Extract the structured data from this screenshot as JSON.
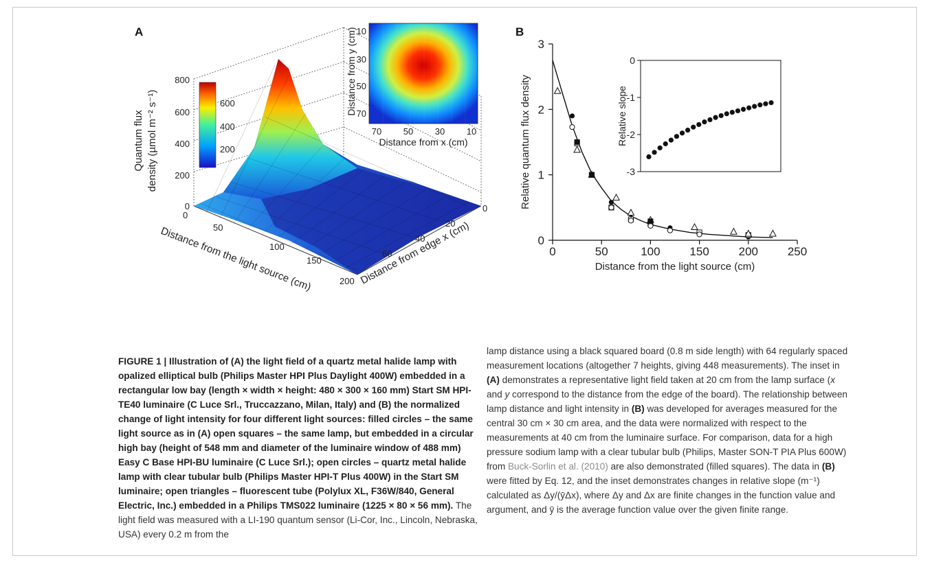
{
  "panel_a": {
    "label": "A",
    "z_axis_label_line1": "Quantum flux",
    "z_axis_label_line2": "density (µmol m⁻² s⁻¹)",
    "z_ticks": [
      "0",
      "200",
      "400",
      "600",
      "800"
    ],
    "x_axis_label": "Distance from the light source (cm)",
    "x_ticks": [
      "0",
      "50",
      "100",
      "150",
      "200"
    ],
    "y_axis_label": "Distance from edge x (cm)",
    "y_ticks": [
      "0",
      "20",
      "40",
      "60"
    ],
    "colorbar_ticks": [
      "600",
      "400",
      "200"
    ],
    "inset": {
      "y_label": "Distance from y (cm)",
      "x_label": "Distance from x (cm)",
      "y_ticks": [
        "10",
        "30",
        "50",
        "70"
      ],
      "x_ticks": [
        "70",
        "50",
        "30",
        "10"
      ]
    }
  },
  "panel_b": {
    "label": "B",
    "inset_ylabel": "Relative slope"
  },
  "chart_data": {
    "type": "scatter",
    "title": "",
    "xlabel": "Distance from the light source (cm)",
    "ylabel": "Relative quantum flux density",
    "xlim": [
      0,
      250
    ],
    "ylim": [
      0,
      3
    ],
    "x_ticks": [
      "0",
      "50",
      "100",
      "150",
      "200",
      "250"
    ],
    "y_ticks": [
      "0",
      "1",
      "2",
      "3"
    ],
    "series": [
      {
        "marker": "filled-circle",
        "x": [
          20,
          40,
          60,
          80,
          100,
          120,
          150,
          200
        ],
        "y": [
          1.9,
          1.0,
          0.58,
          0.4,
          0.27,
          0.19,
          0.1,
          0.05
        ]
      },
      {
        "marker": "open-square",
        "x": [
          25,
          40,
          60,
          80,
          100,
          150,
          200
        ],
        "y": [
          1.48,
          1.0,
          0.5,
          0.32,
          0.25,
          0.12,
          0.08
        ]
      },
      {
        "marker": "open-circle",
        "x": [
          20,
          40,
          60,
          80,
          100,
          120,
          150
        ],
        "y": [
          1.73,
          1.0,
          0.5,
          0.3,
          0.22,
          0.15,
          0.09
        ]
      },
      {
        "marker": "open-triangle",
        "x": [
          5,
          25,
          40,
          65,
          80,
          100,
          145,
          185,
          200,
          225
        ],
        "y": [
          2.28,
          1.38,
          1.0,
          0.65,
          0.42,
          0.31,
          0.2,
          0.13,
          0.1,
          0.1
        ]
      },
      {
        "marker": "filled-square",
        "x": [
          25,
          40,
          100
        ],
        "y": [
          1.5,
          1.0,
          0.29
        ]
      }
    ],
    "fit_curve": {
      "x": [
        0,
        10,
        20,
        30,
        40,
        50,
        60,
        70,
        80,
        90,
        100,
        120,
        140,
        160,
        180,
        200,
        225
      ],
      "y": [
        2.75,
        2.25,
        1.75,
        1.35,
        1.02,
        0.8,
        0.6,
        0.47,
        0.37,
        0.3,
        0.24,
        0.17,
        0.12,
        0.09,
        0.07,
        0.05,
        0.04
      ]
    },
    "inset": {
      "type": "scatter",
      "ylabel": "Relative slope",
      "ylim": [
        -3,
        0
      ],
      "y_ticks": [
        "0",
        "-1",
        "-2",
        "-3"
      ],
      "points": [
        -2.6,
        -2.48,
        -2.36,
        -2.25,
        -2.15,
        -2.05,
        -1.96,
        -1.88,
        -1.8,
        -1.73,
        -1.66,
        -1.6,
        -1.54,
        -1.49,
        -1.44,
        -1.4,
        -1.36,
        -1.32,
        -1.28,
        -1.24,
        -1.2,
        -1.17,
        -1.14
      ]
    }
  },
  "caption": {
    "left_bold": "FIGURE 1 | Illustration of (A) the light field of a quartz metal halide lamp with opalized elliptical bulb (Philips Master HPI Plus Daylight 400W) embedded in a rectangular low bay (length × width × height: 480 × 300 × 160 mm) Start SM HPI-TE40 luminaire (C Luce Srl., Truccazzano, Milan, Italy) and (B) the normalized change of light intensity for four different light sources: filled circles – the same light source as in (A) open squares – the same lamp, but embedded in a circular high bay (height of 548 mm and diameter of the luminaire window of 488 mm) Easy C Base HPI-BU luminaire (C Luce Srl.); open circles – quartz metal halide lamp with clear tubular bulb (Philips Master HPI-T Plus 400W) in the Start SM luminaire; open triangles – fluorescent tube (Polylux XL, F36W/840, General Electric, Inc.) embedded in a Philips TMS022 luminaire (1225 × 80 × 56 mm).",
    "left_normal": " The light field was measured with a LI-190 quantum sensor (Li-Cor, Inc., Lincoln, Nebraska, USA) every 0.2 m from the",
    "right_1": "lamp distance using a black squared board (0.8 m side length) with 64 regularly spaced measurement locations (altogether 7 heights, giving 448 measurements). The inset in ",
    "right_b1": "(A)",
    "right_2": " demonstrates a representative light field taken at 20 cm from the lamp surface (",
    "right_x": "x",
    "right_3": " and ",
    "right_y": "y",
    "right_4": " correspond to the distance from the edge of the board). The relationship between lamp distance and light intensity in ",
    "right_b2": "(B)",
    "right_5": " was developed for averages measured for the central 30 cm × 30 cm area, and the data were normalized with respect to the measurements at 40 cm from the luminaire surface. For comparison, data for a high pressure sodium lamp with a clear tubular bulb (Philips, Master SON-T PIA Plus 600W) from ",
    "right_link": "Buck-Sorlin et al. (2010)",
    "right_6": " are also demonstrated (filled squares). The data in ",
    "right_b3": "(B)",
    "right_7": " were fitted by  Eq. 12, and the inset demonstrates changes in relative slope (m⁻¹) calculated as Δy/(ȳΔx), where Δy and Δx are finite changes in the function value and argument, and ȳ is the average function value over the given finite range."
  }
}
